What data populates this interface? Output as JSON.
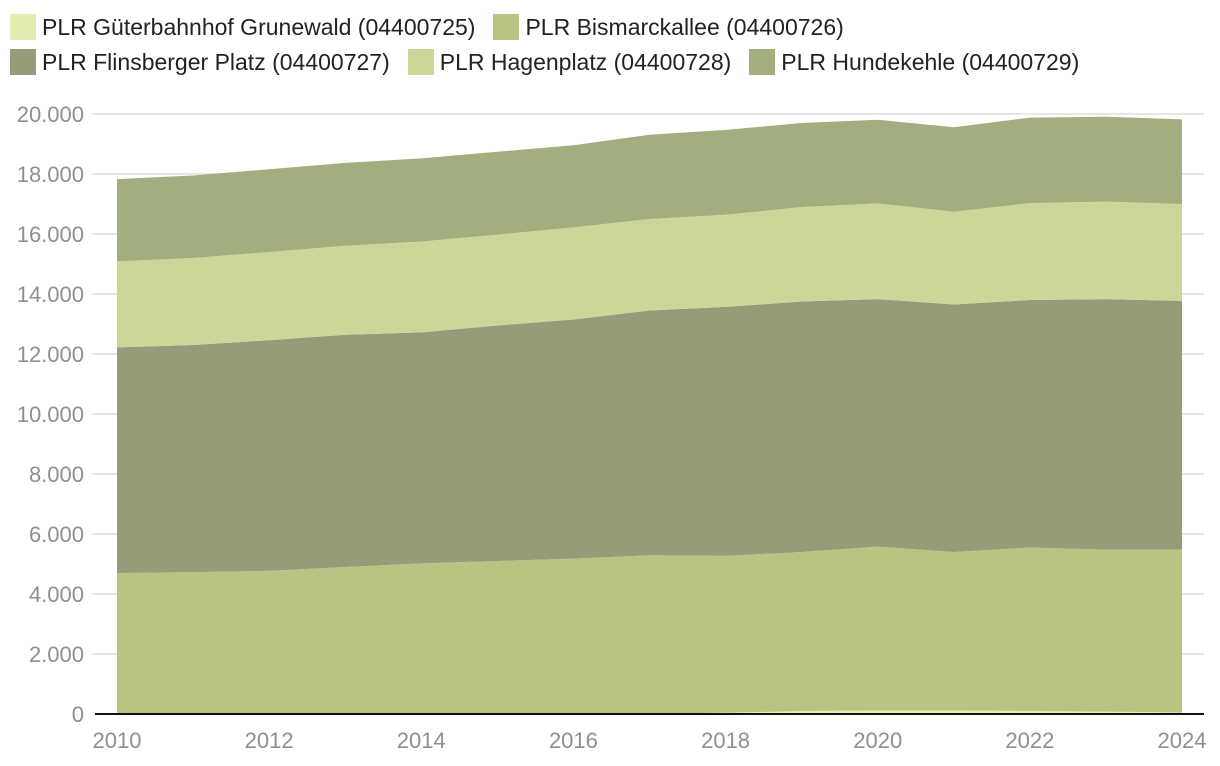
{
  "chart_data": {
    "type": "area",
    "stacked": true,
    "title": "",
    "xlabel": "",
    "ylabel": "",
    "x": [
      2010,
      2011,
      2012,
      2013,
      2014,
      2015,
      2016,
      2017,
      2018,
      2019,
      2020,
      2021,
      2022,
      2023,
      2024
    ],
    "x_ticks": [
      "2010",
      "2012",
      "2014",
      "2016",
      "2018",
      "2020",
      "2022",
      "2024"
    ],
    "y_ticks": [
      "0",
      "2.000",
      "4.000",
      "6.000",
      "8.000",
      "10.000",
      "12.000",
      "14.000",
      "16.000",
      "18.000",
      "20.000"
    ],
    "ylim": [
      0,
      20000
    ],
    "grid": true,
    "legend_position": "top",
    "series": [
      {
        "name": "PLR Güterbahnhof Grunewald (04400725)",
        "color": "#e3ebb1",
        "values": [
          0,
          0,
          0,
          0,
          0,
          0,
          0,
          10,
          40,
          100,
          120,
          120,
          100,
          80,
          50
        ]
      },
      {
        "name": "PLR Bismarckallee (04400726)",
        "color": "#b9c482",
        "values": [
          4700,
          4730,
          4770,
          4900,
          5020,
          5100,
          5180,
          5280,
          5230,
          5300,
          5460,
          5280,
          5450,
          5400,
          5430
        ]
      },
      {
        "name": "PLR Flinsberger Platz (04400727)",
        "color": "#949c7a",
        "values": [
          7520,
          7570,
          7690,
          7740,
          7700,
          7850,
          7970,
          8160,
          8300,
          8350,
          8250,
          8250,
          8250,
          8350,
          8290
        ]
      },
      {
        "name": "PLR Hagenplatz (04400728)",
        "color": "#ccd699",
        "values": [
          2870,
          2900,
          2940,
          2970,
          3030,
          3030,
          3070,
          3050,
          3070,
          3150,
          3190,
          3090,
          3230,
          3250,
          3230
        ]
      },
      {
        "name": "PLR Hundekehle (04400729)",
        "color": "#a3ae7e",
        "values": [
          2740,
          2750,
          2760,
          2760,
          2770,
          2760,
          2740,
          2810,
          2830,
          2800,
          2790,
          2820,
          2850,
          2830,
          2820
        ]
      }
    ]
  }
}
